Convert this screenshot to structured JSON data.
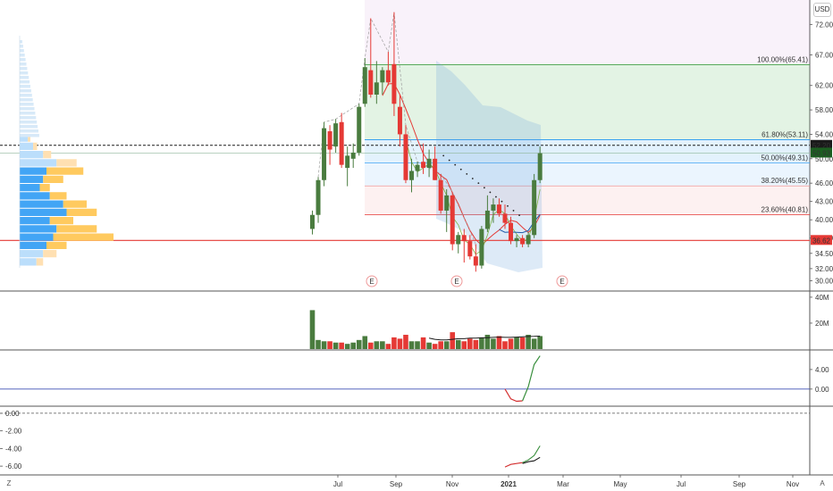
{
  "header": {
    "currency_button": "USD"
  },
  "footer": {
    "zoom_button": "Z",
    "auto_button": "A"
  },
  "chart_data": [
    {
      "id": "price",
      "type": "candlestick",
      "ylim": [
        29.5,
        76
      ],
      "y_ticks": [
        "72.00",
        "67.00",
        "62.00",
        "58.00",
        "54.00",
        "50.00",
        "46.00",
        "43.00",
        "40.00",
        "37.00",
        "34.50",
        "32.00",
        "30.00"
      ],
      "y_tick_values": [
        72,
        67,
        62,
        58,
        54,
        50,
        46,
        43,
        40,
        37,
        34.5,
        32,
        30
      ],
      "x_months": [
        "Jul",
        "Sep",
        "Nov",
        "2021",
        "Mar",
        "May",
        "Jul",
        "Sep",
        "Nov"
      ],
      "candles": [
        {
          "o": 38.5,
          "h": 41.5,
          "l": 37.6,
          "c": 40.8
        },
        {
          "o": 40.8,
          "h": 47.0,
          "l": 39.5,
          "c": 46.5
        },
        {
          "o": 46.5,
          "h": 56.0,
          "l": 45.5,
          "c": 55.0
        },
        {
          "o": 54.5,
          "h": 55.5,
          "l": 49.0,
          "c": 51.5
        },
        {
          "o": 52.0,
          "h": 56.5,
          "l": 51.0,
          "c": 55.8
        },
        {
          "o": 56.0,
          "h": 57.5,
          "l": 48.5,
          "c": 49.0
        },
        {
          "o": 48.5,
          "h": 52.0,
          "l": 45.5,
          "c": 50.5
        },
        {
          "o": 50.0,
          "h": 52.5,
          "l": 48.5,
          "c": 51.0
        },
        {
          "o": 51.0,
          "h": 59.0,
          "l": 50.5,
          "c": 58.5
        },
        {
          "o": 59.0,
          "h": 66.5,
          "l": 58.5,
          "c": 65.0
        },
        {
          "o": 64.5,
          "h": 73.0,
          "l": 60.0,
          "c": 60.5
        },
        {
          "o": 60.5,
          "h": 66.0,
          "l": 59.0,
          "c": 62.5
        },
        {
          "o": 62.5,
          "h": 65.0,
          "l": 60.5,
          "c": 64.5
        },
        {
          "o": 64.5,
          "h": 67.5,
          "l": 62.0,
          "c": 62.5
        },
        {
          "o": 65.5,
          "h": 74.0,
          "l": 57.0,
          "c": 59.0
        },
        {
          "o": 58.5,
          "h": 60.5,
          "l": 52.0,
          "c": 54.0
        },
        {
          "o": 54.0,
          "h": 55.5,
          "l": 46.0,
          "c": 46.5
        },
        {
          "o": 46.5,
          "h": 50.0,
          "l": 44.5,
          "c": 48.0
        },
        {
          "o": 48.0,
          "h": 49.5,
          "l": 47.0,
          "c": 49.0
        },
        {
          "o": 49.5,
          "h": 52.5,
          "l": 47.5,
          "c": 48.5
        },
        {
          "o": 48.5,
          "h": 51.5,
          "l": 47.0,
          "c": 50.0
        },
        {
          "o": 50.0,
          "h": 52.0,
          "l": 46.5,
          "c": 46.5
        },
        {
          "o": 46.5,
          "h": 47.5,
          "l": 41.0,
          "c": 41.5
        },
        {
          "o": 41.5,
          "h": 45.0,
          "l": 38.0,
          "c": 44.0
        },
        {
          "o": 44.0,
          "h": 44.5,
          "l": 35.0,
          "c": 36.0
        },
        {
          "o": 36.0,
          "h": 38.0,
          "l": 34.5,
          "c": 37.5
        },
        {
          "o": 37.5,
          "h": 38.5,
          "l": 33.0,
          "c": 36.5
        },
        {
          "o": 36.5,
          "h": 37.5,
          "l": 33.5,
          "c": 34.0
        },
        {
          "o": 34.0,
          "h": 36.0,
          "l": 31.5,
          "c": 32.5
        },
        {
          "o": 32.5,
          "h": 39.0,
          "l": 32.0,
          "c": 38.5
        },
        {
          "o": 38.5,
          "h": 44.0,
          "l": 38.0,
          "c": 41.5
        },
        {
          "o": 41.5,
          "h": 43.5,
          "l": 39.5,
          "c": 42.5
        },
        {
          "o": 42.5,
          "h": 43.5,
          "l": 40.5,
          "c": 41.0
        },
        {
          "o": 41.0,
          "h": 42.5,
          "l": 38.5,
          "c": 39.5
        },
        {
          "o": 39.5,
          "h": 40.5,
          "l": 36.0,
          "c": 36.5
        },
        {
          "o": 36.5,
          "h": 37.5,
          "l": 35.5,
          "c": 37.0
        },
        {
          "o": 37.0,
          "h": 37.5,
          "l": 35.5,
          "c": 36.0
        },
        {
          "o": 36.0,
          "h": 38.0,
          "l": 35.5,
          "c": 37.5
        },
        {
          "o": 37.5,
          "h": 47.5,
          "l": 37.0,
          "c": 46.5
        },
        {
          "o": 46.5,
          "h": 52.0,
          "l": 46.0,
          "c": 50.9
        }
      ],
      "fib_levels": [
        {
          "label": "100.00%(65.41)",
          "value": 65.41,
          "color": "#43a047",
          "fill": "rgba(129,199,132,0.22)"
        },
        {
          "label": "61.80%(53.11)",
          "value": 53.11,
          "color": "#2196f3",
          "fill": "rgba(100,181,246,0.18)"
        },
        {
          "label": "50.00%(49.31)",
          "value": 49.31,
          "color": "#42a5f5",
          "fill": "rgba(144,202,249,0.18)"
        },
        {
          "label": "38.20%(45.55)",
          "value": 45.55,
          "color": "#ef9a9a",
          "fill": "rgba(239,154,154,0.14)"
        },
        {
          "label": "23.60%(40.81)",
          "value": 40.81,
          "color": "#e53935",
          "fill": "rgba(239,154,154,0.05)"
        }
      ],
      "levels": [
        {
          "label": "52.20",
          "value": 52.2,
          "color": "#1a1a1a",
          "style": "dashed"
        },
        {
          "label": "50.93",
          "value": 50.93,
          "color": "#1b5e20",
          "style": "solid"
        },
        {
          "label": "36.62",
          "value": 36.62,
          "color": "#e53935",
          "style": "solid"
        }
      ],
      "earnings_markers": [
        "E",
        "E",
        "E"
      ],
      "volume_profile": [
        {
          "up": 0.12,
          "down": 0.04,
          "light": true
        },
        {
          "up": 0.2,
          "down": 0.06,
          "light": true
        },
        {
          "up": 0.35,
          "down": 0.12,
          "light": true
        },
        {
          "up": 0.55,
          "down": 0.3,
          "light": true
        },
        {
          "up": 0.4,
          "down": 0.55,
          "light": false
        },
        {
          "up": 0.35,
          "down": 0.3,
          "light": false
        },
        {
          "up": 0.3,
          "down": 0.15,
          "light": false
        },
        {
          "up": 0.45,
          "down": 0.25,
          "light": false
        },
        {
          "up": 0.65,
          "down": 0.35,
          "light": false
        },
        {
          "up": 0.7,
          "down": 0.45,
          "light": false
        },
        {
          "up": 0.45,
          "down": 0.35,
          "light": false
        },
        {
          "up": 0.55,
          "down": 0.6,
          "light": false
        },
        {
          "up": 0.5,
          "down": 0.9,
          "light": false
        },
        {
          "up": 0.4,
          "down": 0.3,
          "light": false
        },
        {
          "up": 0.35,
          "down": 0.2,
          "light": true
        },
        {
          "up": 0.25,
          "down": 0.1,
          "light": true
        }
      ]
    },
    {
      "id": "volume",
      "type": "bar",
      "y_ticks": [
        "40M",
        "20M"
      ],
      "y_tick_values": [
        40,
        20
      ],
      "ylim": [
        0,
        42
      ],
      "values": [
        30,
        7,
        6,
        6,
        5,
        5,
        4,
        5,
        7,
        10,
        5,
        6,
        6,
        4,
        9,
        8,
        11,
        6,
        6,
        9,
        5,
        4,
        6,
        6,
        13,
        7,
        6,
        8,
        7,
        9,
        11,
        8,
        10,
        6,
        8,
        9,
        9,
        11,
        8,
        10
      ],
      "ma": [
        null,
        null,
        null,
        null,
        null,
        null,
        null,
        null,
        null,
        null,
        null,
        null,
        null,
        null,
        null,
        null,
        null,
        null,
        null,
        null,
        8.5,
        7.5,
        7.0,
        7.0,
        7.5,
        8.0,
        8.0,
        8.5,
        8.5,
        8.7,
        8.8,
        9.0,
        9.2,
        9.0,
        9.0,
        9.2,
        9.5,
        9.7,
        9.8,
        10.0
      ]
    },
    {
      "id": "oscillator1",
      "type": "line",
      "y_ticks": [
        "4.00",
        "0.00"
      ],
      "y_tick_values": [
        4,
        0
      ],
      "ylim": [
        -3.5,
        8
      ],
      "zero_line": 0,
      "red_series": [
        null,
        null,
        null,
        null,
        null,
        null,
        null,
        null,
        null,
        null,
        null,
        null,
        null,
        null,
        null,
        null,
        null,
        null,
        null,
        null,
        null,
        null,
        null,
        null,
        null,
        null,
        null,
        null,
        null,
        null,
        null,
        null,
        null,
        0,
        -2.0,
        -2.5,
        -2.4,
        null,
        null,
        null
      ],
      "green_series": [
        null,
        null,
        null,
        null,
        null,
        null,
        null,
        null,
        null,
        null,
        null,
        null,
        null,
        null,
        null,
        null,
        null,
        null,
        null,
        null,
        null,
        null,
        null,
        null,
        null,
        null,
        null,
        null,
        null,
        null,
        null,
        null,
        null,
        null,
        null,
        null,
        -2.4,
        0.5,
        5.0,
        6.8
      ]
    },
    {
      "id": "oscillator2",
      "type": "line",
      "y_ticks": [
        "0.00",
        "-2.00",
        "-4.00",
        "-6.00"
      ],
      "y_tick_values": [
        0,
        -2,
        -4,
        -6
      ],
      "ylim": [
        -7,
        0.8
      ],
      "red_series": [
        null,
        null,
        null,
        null,
        null,
        null,
        null,
        null,
        null,
        null,
        null,
        null,
        null,
        null,
        null,
        null,
        null,
        null,
        null,
        null,
        null,
        null,
        null,
        null,
        null,
        null,
        null,
        null,
        null,
        null,
        null,
        null,
        null,
        -6.1,
        -5.8,
        -5.7,
        -5.6,
        null,
        null,
        null
      ],
      "green_series": [
        null,
        null,
        null,
        null,
        null,
        null,
        null,
        null,
        null,
        null,
        null,
        null,
        null,
        null,
        null,
        null,
        null,
        null,
        null,
        null,
        null,
        null,
        null,
        null,
        null,
        null,
        null,
        null,
        null,
        null,
        null,
        null,
        null,
        null,
        null,
        null,
        -5.6,
        -5.3,
        -4.8,
        -3.7
      ],
      "black_series": [
        null,
        null,
        null,
        null,
        null,
        null,
        null,
        null,
        null,
        null,
        null,
        null,
        null,
        null,
        null,
        null,
        null,
        null,
        null,
        null,
        null,
        null,
        null,
        null,
        null,
        null,
        null,
        null,
        null,
        null,
        null,
        null,
        null,
        null,
        null,
        null,
        -5.7,
        -5.5,
        -5.4,
        -5.0
      ]
    }
  ]
}
